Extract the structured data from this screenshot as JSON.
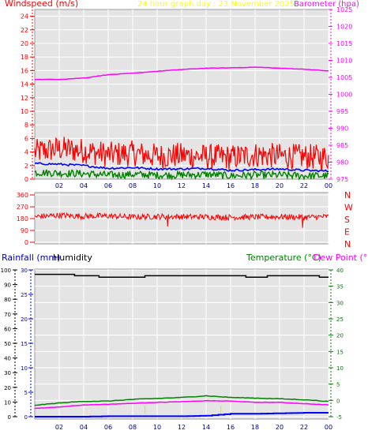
{
  "header": {
    "windspeed_label": "Windspeed (m/s)",
    "graph_title": "24 hour graph day : 23 November 2025",
    "barometer_label": "Barometer (hpa)"
  },
  "lower_header": {
    "rainfall_label": "Rainfall (mm)",
    "humidity_label": "Humidity",
    "temperature_label": "Temperature (°C)",
    "dewpoint_label": "Dew Point (°C)"
  },
  "colors": {
    "wind": "#ff0000",
    "avg_wind": "#0000ff",
    "gust_low": "#008000",
    "barometer": "#ff00ff",
    "title": "#ffff00",
    "humidity": "#000000",
    "temperature": "#008000",
    "dewpoint": "#ff00ff",
    "rainfall": "#0000ff",
    "plot_bg": "#e4e4e4"
  },
  "x_axis": {
    "ticks": [
      "02",
      "04",
      "06",
      "08",
      "10",
      "12",
      "14",
      "16",
      "18",
      "20",
      "22",
      "00"
    ]
  },
  "chart_data": [
    {
      "type": "line",
      "id": "wind-barometer",
      "x": [
        0,
        2,
        4,
        6,
        8,
        10,
        12,
        14,
        16,
        18,
        20,
        22,
        24
      ],
      "y_left": {
        "ticks": [
          "0",
          "2",
          "4",
          "6",
          "8",
          "10",
          "12",
          "14",
          "16",
          "18",
          "20",
          "22",
          "24"
        ],
        "range": [
          0,
          25
        ]
      },
      "y_right": {
        "ticks": [
          "975",
          "980",
          "985",
          "990",
          "995",
          "1000",
          "1005",
          "1010",
          "1015",
          "1020",
          "1025"
        ],
        "range": [
          975,
          1025
        ]
      },
      "series": [
        {
          "axis": "left",
          "values": [
            4.0,
            4.5,
            4.2,
            3.6,
            3.8,
            3.4,
            3.5,
            3.3,
            3.2,
            3.6,
            3.4,
            3.3,
            3.2
          ]
        },
        {
          "axis": "left",
          "values": [
            2.3,
            2.2,
            2.0,
            1.6,
            1.7,
            1.5,
            1.5,
            1.6,
            1.3,
            1.4,
            1.5,
            1.3,
            1.2
          ]
        },
        {
          "axis": "left",
          "values": [
            1.0,
            0.9,
            0.8,
            0.6,
            0.7,
            0.6,
            0.6,
            0.7,
            0.5,
            0.6,
            0.6,
            0.5,
            0.5
          ]
        },
        {
          "axis": "right",
          "values": [
            1004.4,
            1004.4,
            1004.8,
            1005.8,
            1006.2,
            1006.8,
            1007.3,
            1007.7,
            1007.8,
            1008.0,
            1007.7,
            1007.4,
            1006.9
          ]
        }
      ]
    },
    {
      "type": "line",
      "id": "wind-direction",
      "x": [
        0,
        2,
        4,
        6,
        8,
        10,
        12,
        14,
        16,
        18,
        20,
        22,
        24
      ],
      "y": {
        "ticks": [
          "0",
          "90",
          "180",
          "270",
          "360"
        ],
        "range": [
          0,
          360
        ]
      },
      "y_right_labels": [
        "N",
        "W",
        "S",
        "E",
        "N"
      ],
      "series": [
        {
          "values": [
            195,
            205,
            198,
            200,
            192,
            196,
            194,
            193,
            190,
            192,
            194,
            190,
            195
          ]
        }
      ]
    },
    {
      "type": "line",
      "id": "temperature-humidity-rain",
      "x": [
        0,
        2,
        4,
        6,
        8,
        10,
        12,
        14,
        16,
        18,
        20,
        22,
        24
      ],
      "y_humidity": {
        "ticks": [
          "0",
          "10",
          "20",
          "30",
          "40",
          "50",
          "60",
          "70",
          "80",
          "90",
          "100"
        ],
        "range": [
          0,
          100
        ]
      },
      "y_rain": {
        "ticks": [
          "0",
          "5",
          "10",
          "15",
          "20",
          "25",
          "30"
        ],
        "range": [
          0,
          30
        ]
      },
      "y_temperature": {
        "ticks": [
          "-5",
          "0",
          "5",
          "10",
          "15",
          "20",
          "25",
          "30",
          "35",
          "40"
        ],
        "range": [
          -5,
          40
        ]
      },
      "series": [
        {
          "axis": "humidity",
          "values": [
            97,
            97,
            96,
            95,
            95,
            96,
            96,
            96,
            96,
            95,
            96,
            96,
            95
          ]
        },
        {
          "axis": "temperature",
          "values": [
            -1.5,
            -0.8,
            -0.3,
            -0.2,
            0.3,
            0.6,
            0.9,
            1.4,
            0.9,
            0.7,
            0.5,
            0.2,
            -0.3
          ]
        },
        {
          "axis": "temperature",
          "values": [
            -2.5,
            -2.0,
            -1.4,
            -1.2,
            -0.9,
            -0.6,
            -0.4,
            -0.1,
            -0.2,
            -0.6,
            -0.6,
            -1.0,
            -1.4
          ]
        },
        {
          "axis": "rain",
          "values": [
            0.0,
            0.0,
            0.0,
            0.1,
            0.1,
            0.1,
            0.1,
            0.2,
            0.6,
            0.6,
            0.7,
            0.8,
            0.8
          ]
        }
      ]
    }
  ]
}
